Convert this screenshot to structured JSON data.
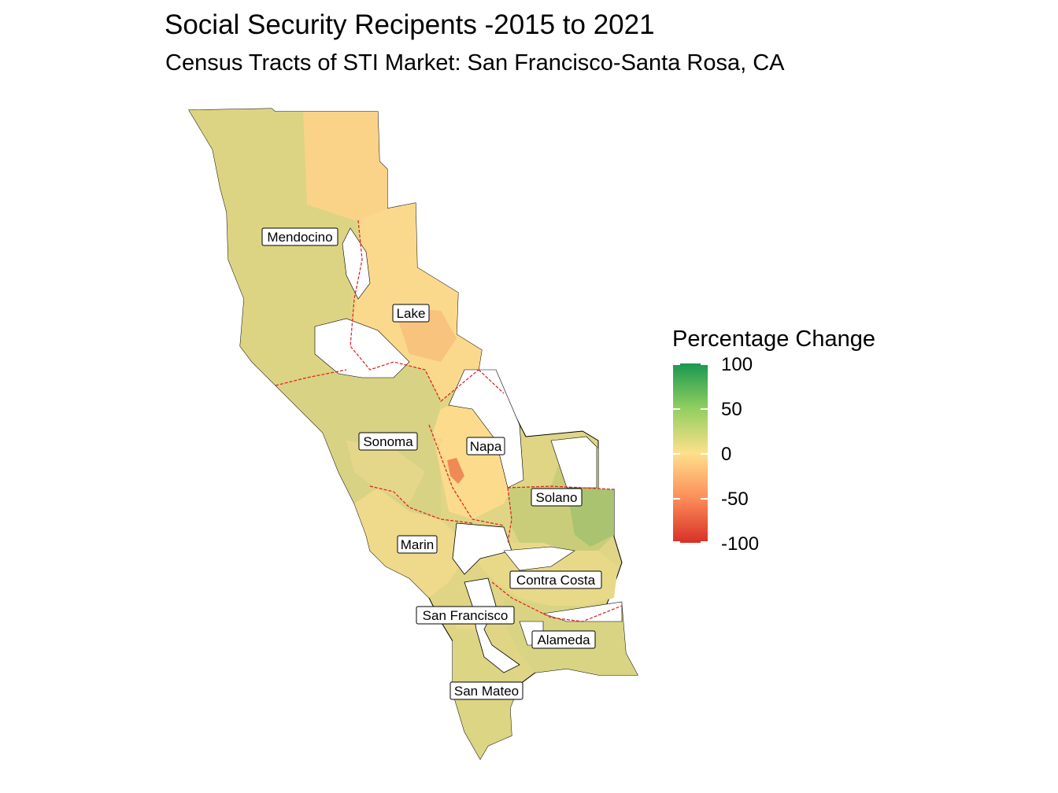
{
  "title": "Social Security Recipents -2015 to 2021",
  "subtitle": "Census Tracts of STI Market: San Francisco-Santa Rosa, CA",
  "legend": {
    "title": "Percentage Change",
    "labels": [
      "100",
      "50",
      "0",
      "-50",
      "-100"
    ],
    "range": [
      -100,
      100
    ],
    "colors": [
      "#1a9850",
      "#91cf60",
      "#fee08b",
      "#fc8d59",
      "#d73027"
    ]
  },
  "counties": [
    {
      "name": "Mendocino",
      "value": 12
    },
    {
      "name": "Lake",
      "value": -5
    },
    {
      "name": "Sonoma",
      "value": 15
    },
    {
      "name": "Napa",
      "value": -2
    },
    {
      "name": "Solano",
      "value": 30
    },
    {
      "name": "Marin",
      "value": 8
    },
    {
      "name": "Contra Costa",
      "value": 10
    },
    {
      "name": "San Francisco",
      "value": 15
    },
    {
      "name": "Alameda",
      "value": 12
    },
    {
      "name": "San Mateo",
      "value": 18
    }
  ],
  "colors": {
    "boundary": "#e41a1c",
    "outline": "#000000",
    "label_bg": "#ffffff"
  }
}
